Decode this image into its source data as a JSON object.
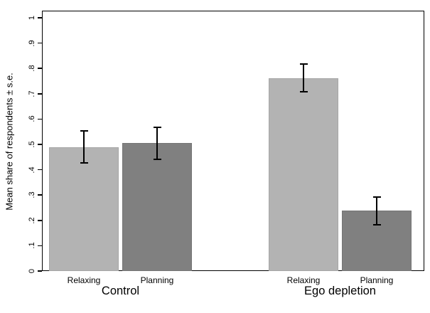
{
  "chart_data": {
    "type": "bar",
    "title": "",
    "ylabel": "Mean share of respondents ± s.e.",
    "xlabel": "",
    "ylim": [
      0,
      1
    ],
    "grid": false,
    "legend": "none",
    "background": "#ffffff",
    "frame_color": "#000000",
    "error_bar_color": "#000000",
    "yticks": [
      {
        "value": 0,
        "label": "0"
      },
      {
        "value": 0.1,
        "label": ".1"
      },
      {
        "value": 0.2,
        "label": ".2"
      },
      {
        "value": 0.3,
        "label": ".3"
      },
      {
        "value": 0.4,
        "label": ".4"
      },
      {
        "value": 0.5,
        "label": ".5"
      },
      {
        "value": 0.6,
        "label": ".6"
      },
      {
        "value": 0.7,
        "label": ".7"
      },
      {
        "value": 0.8,
        "label": ".8"
      },
      {
        "value": 0.9,
        "label": ".9"
      },
      {
        "value": 1,
        "label": "1"
      }
    ],
    "groups": [
      {
        "label": "Control",
        "bars": [
          {
            "label": "Relaxing",
            "value": 0.49,
            "se": 0.063,
            "color": "#b3b3b3",
            "border": "#a6a6a6"
          },
          {
            "label": "Planning",
            "value": 0.505,
            "se": 0.063,
            "color": "#808080",
            "border": "#757575"
          }
        ]
      },
      {
        "label": "Ego depletion",
        "bars": [
          {
            "label": "Relaxing",
            "value": 0.762,
            "se": 0.055,
            "color": "#b3b3b3",
            "border": "#a6a6a6"
          },
          {
            "label": "Planning",
            "value": 0.238,
            "se": 0.055,
            "color": "#808080",
            "border": "#757575"
          }
        ]
      }
    ]
  }
}
